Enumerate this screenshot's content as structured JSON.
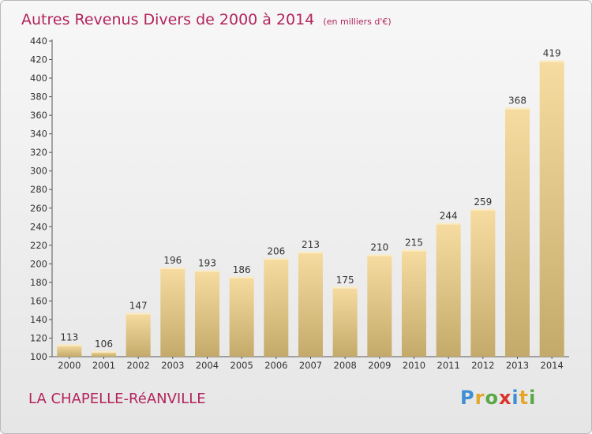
{
  "title": "Autres Revenus Divers de 2000 à 2014",
  "subtitle": "(en milliers d'€)",
  "commune": "LA CHAPELLE-RéANVILLE",
  "logo": {
    "letters": [
      "P",
      "r",
      "o",
      "x",
      "i",
      "t",
      "i"
    ],
    "colors": [
      "#3f8fd2",
      "#e2a72b",
      "#5aa845",
      "#d9342b",
      "#3f8fd2",
      "#e2a72b",
      "#5aa845"
    ]
  },
  "colors": {
    "accent": "#b2245c",
    "bar_top": "#f6dca0",
    "bar_bottom": "#c4aa6a"
  },
  "chart_data": {
    "type": "bar",
    "categories": [
      "2000",
      "2001",
      "2002",
      "2003",
      "2004",
      "2005",
      "2006",
      "2007",
      "2008",
      "2009",
      "2010",
      "2011",
      "2012",
      "2013",
      "2014"
    ],
    "values": [
      113,
      106,
      147,
      196,
      193,
      186,
      206,
      213,
      175,
      210,
      215,
      244,
      259,
      368,
      419
    ],
    "ylim": [
      100,
      440
    ],
    "yticks": [
      100,
      120,
      140,
      160,
      180,
      200,
      220,
      240,
      260,
      280,
      300,
      320,
      340,
      360,
      380,
      400,
      420,
      440
    ],
    "grid": false
  }
}
